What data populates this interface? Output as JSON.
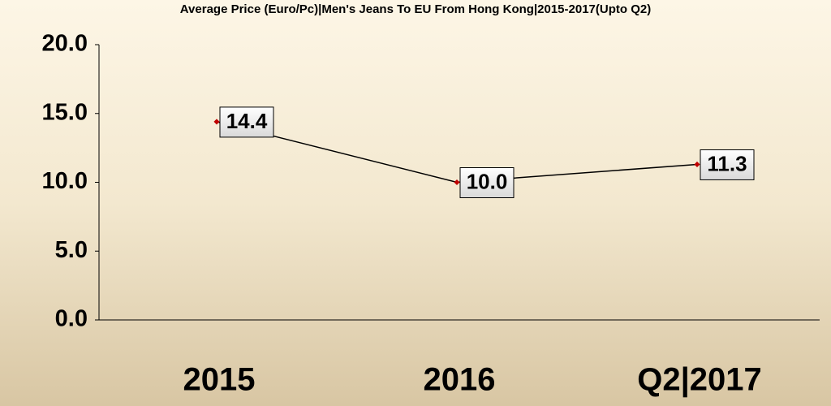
{
  "chart_data": {
    "type": "line",
    "title": "Average Price (Euro/Pc)|Men's Jeans To EU From Hong Kong|2015-2017(Upto Q2)",
    "categories": [
      "2015",
      "2016",
      "Q2|2017"
    ],
    "values": [
      14.4,
      10.0,
      11.3
    ],
    "value_labels": [
      "14.4",
      "10.0",
      "11.3"
    ],
    "color": "#000000",
    "marker_color": "#c00000",
    "ylim": [
      0,
      20
    ],
    "yticks": [
      {
        "value": 0,
        "label": "0.0"
      },
      {
        "value": 5,
        "label": "5.0"
      },
      {
        "value": 10,
        "label": "10.0"
      },
      {
        "value": 15,
        "label": "15.0"
      },
      {
        "value": 20,
        "label": "20.0"
      }
    ],
    "grid": false
  }
}
